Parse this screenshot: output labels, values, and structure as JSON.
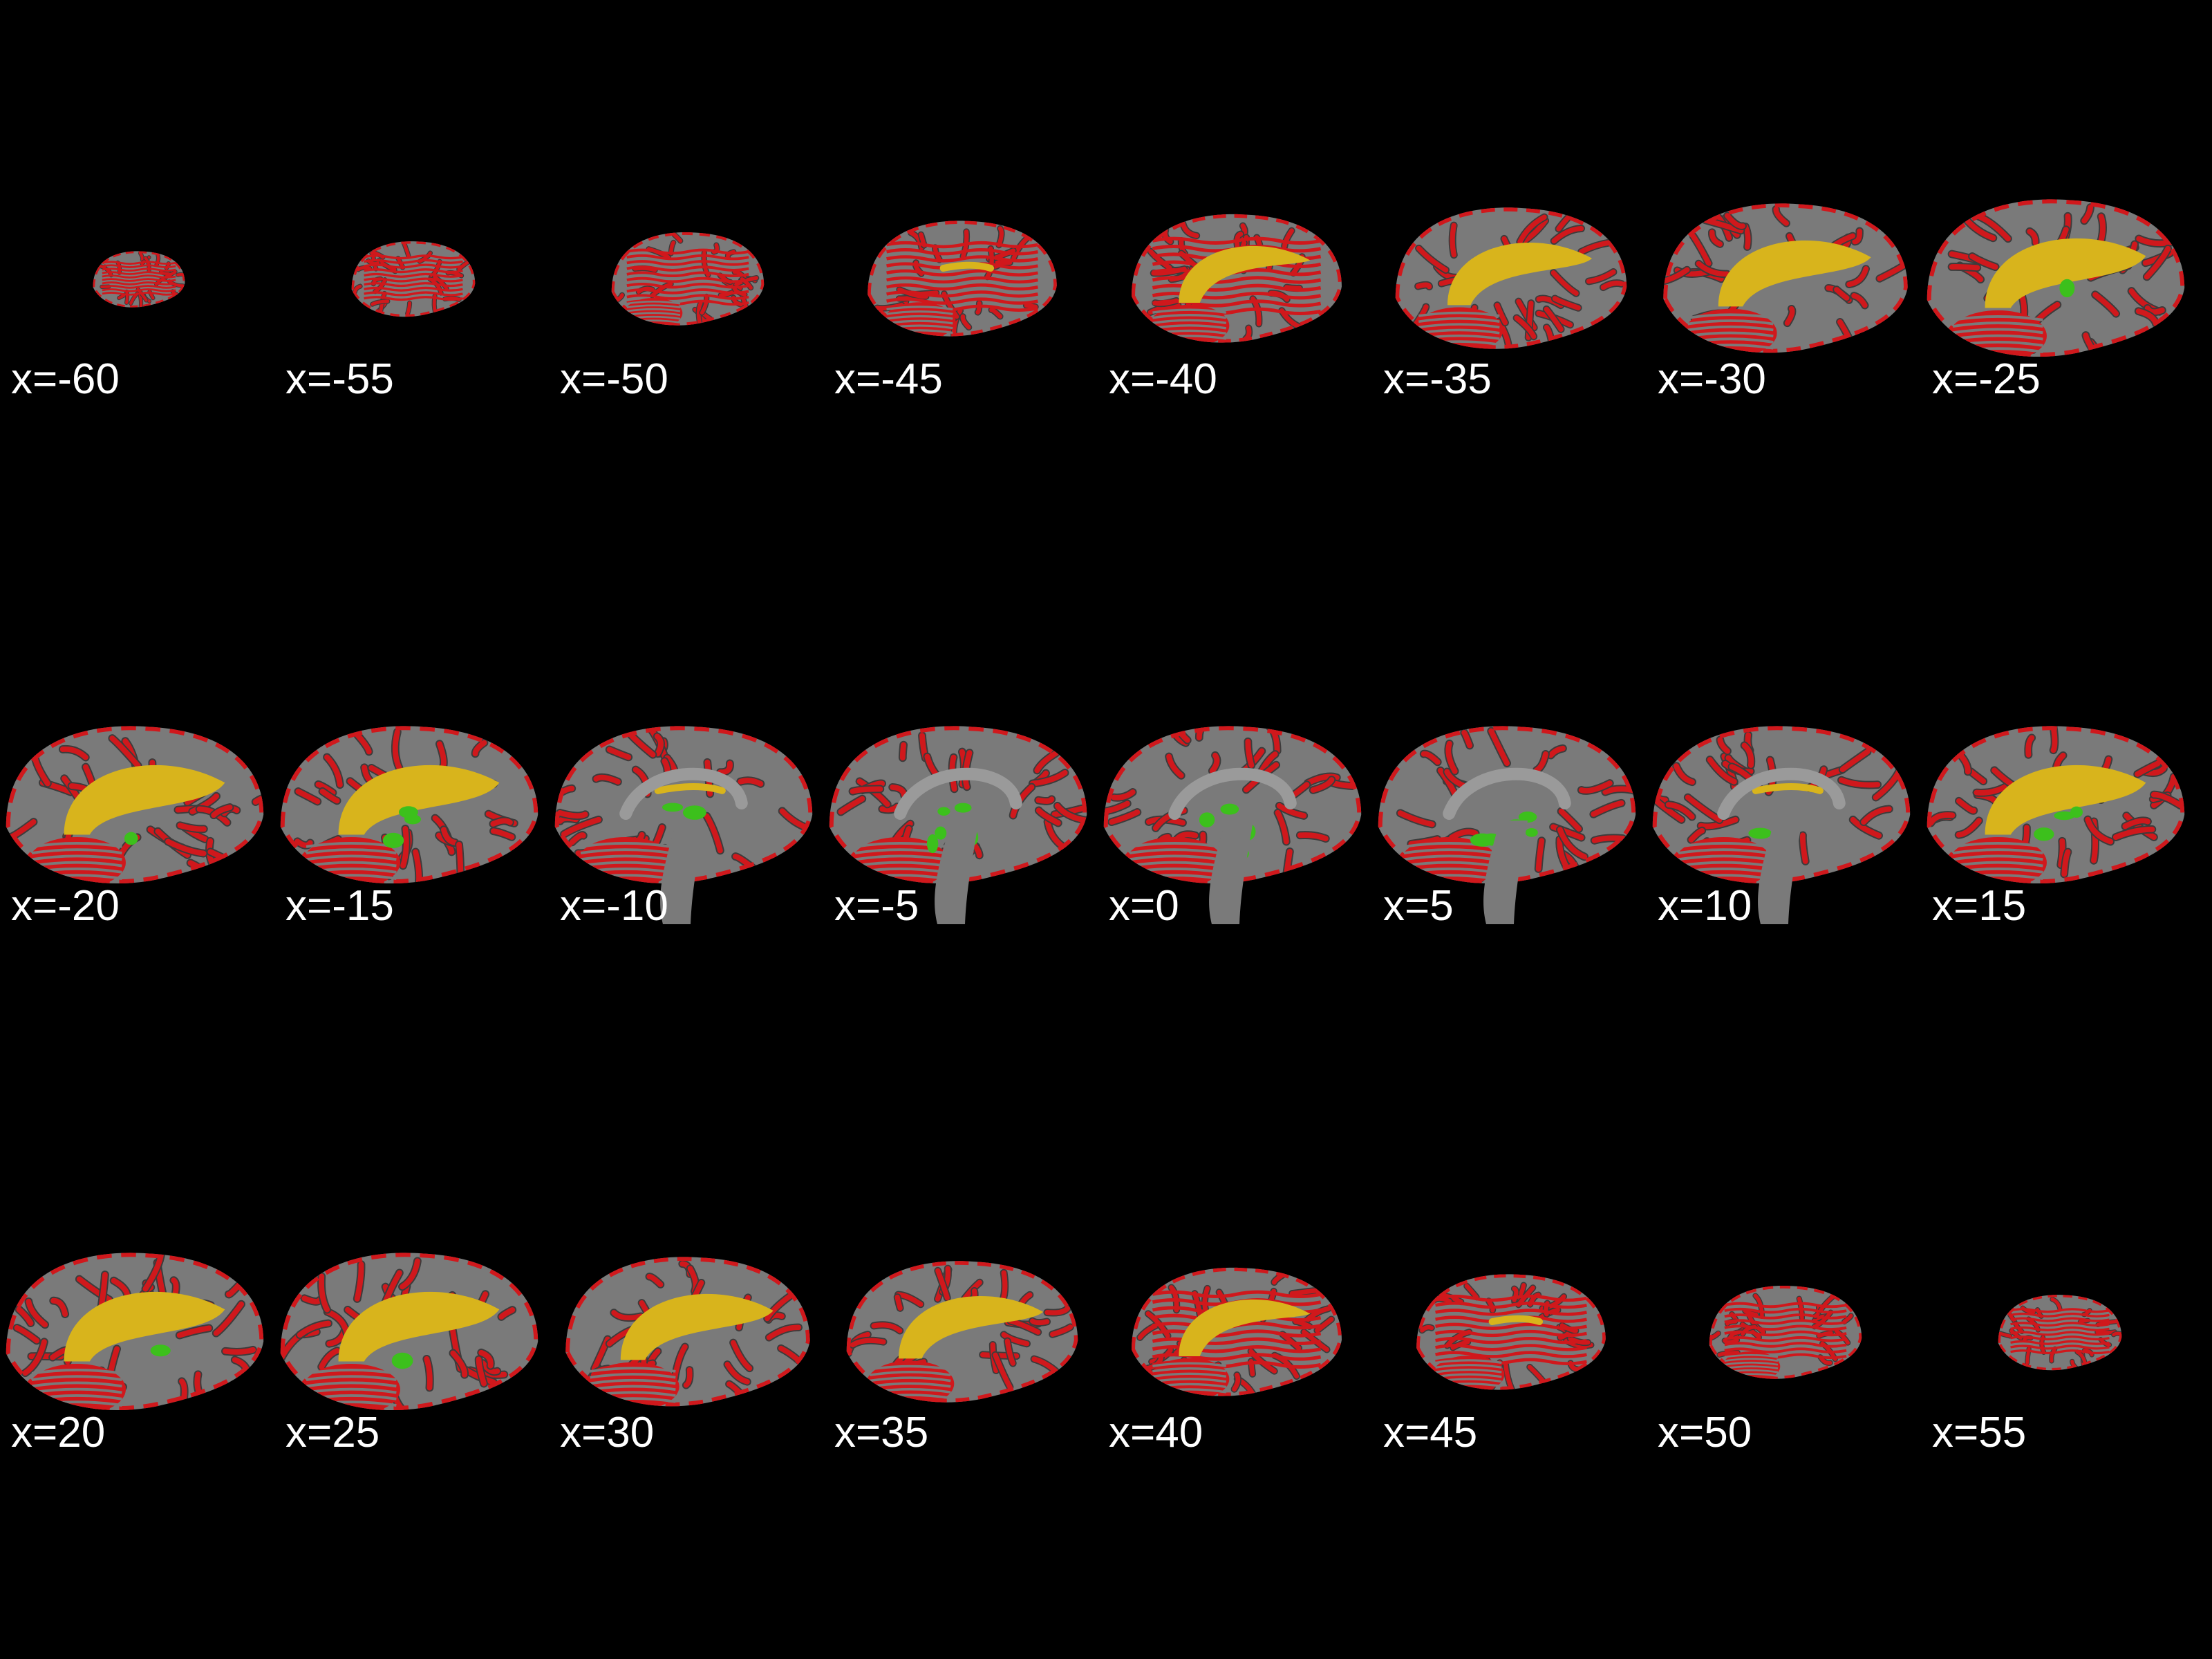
{
  "background_color": "#000000",
  "colors": {
    "anatomy_gray": "#7a7a7a",
    "anatomy_dark": "#3c3c3c",
    "gray_matter_red": "#d0181c",
    "white_matter_yellow": "#d8b41c",
    "deep_green": "#3cc01c",
    "label_text": "#ffffff"
  },
  "rows": [
    {
      "slices": [
        {
          "label": "x=-60",
          "coord": -60
        },
        {
          "label": "x=-55",
          "coord": -55
        },
        {
          "label": "x=-50",
          "coord": -50
        },
        {
          "label": "x=-45",
          "coord": -45
        },
        {
          "label": "x=-40",
          "coord": -40
        },
        {
          "label": "x=-35",
          "coord": -35
        },
        {
          "label": "x=-30",
          "coord": -30
        },
        {
          "label": "x=-25",
          "coord": -25
        }
      ]
    },
    {
      "slices": [
        {
          "label": "x=-20",
          "coord": -20
        },
        {
          "label": "x=-15",
          "coord": -15
        },
        {
          "label": "x=-10",
          "coord": -10
        },
        {
          "label": "x=-5",
          "coord": -5
        },
        {
          "label": "x=0",
          "coord": 0
        },
        {
          "label": "x=5",
          "coord": 5
        },
        {
          "label": "x=10",
          "coord": 10
        },
        {
          "label": "x=15",
          "coord": 15
        }
      ]
    },
    {
      "slices": [
        {
          "label": "x=20",
          "coord": 20
        },
        {
          "label": "x=25",
          "coord": 25
        },
        {
          "label": "x=30",
          "coord": 30
        },
        {
          "label": "x=35",
          "coord": 35
        },
        {
          "label": "x=40",
          "coord": 40
        },
        {
          "label": "x=45",
          "coord": 45
        },
        {
          "label": "x=50",
          "coord": 50
        },
        {
          "label": "x=55",
          "coord": 55
        }
      ]
    }
  ]
}
